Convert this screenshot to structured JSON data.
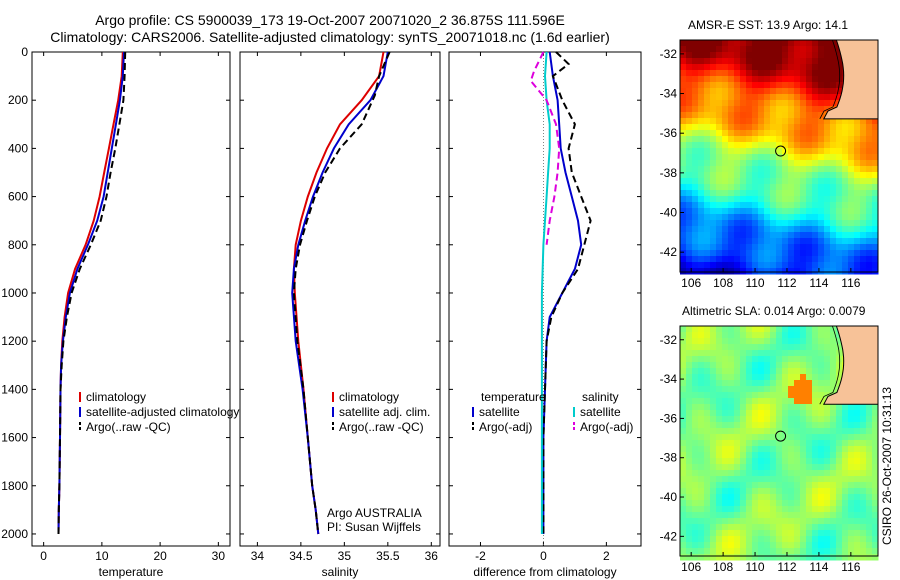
{
  "header": {
    "line1": "Argo profile: CS 5900039_173 19-Oct-2007 20071020_2 36.875S 111.596E",
    "line2": "Climatology: CARS2006. Satellite-adjusted climatology: synTS_20071018.nc (1.6d earlier)"
  },
  "side_stamp": "CSIRO 26-Oct-2007 10:31:13",
  "colors": {
    "climatology": "#dd0000",
    "satellite": "#0000cc",
    "argo": "#000000",
    "salinity_sat": "#00cccc",
    "salinity_argo": "#dd00dd"
  },
  "chart_data": [
    {
      "type": "line",
      "xlabel": "temperature",
      "ylim": [
        2050,
        0
      ],
      "xlim": [
        -2,
        32
      ],
      "xticks": [
        0,
        10,
        20,
        30
      ],
      "yticks": [
        0,
        200,
        400,
        600,
        800,
        1000,
        1200,
        1400,
        1600,
        1800,
        2000
      ],
      "legend": {
        "position": "bottom-right",
        "entries": [
          "climatology",
          "satellite-adjusted climatology",
          "Argo(..raw -QC)"
        ]
      },
      "series": [
        {
          "name": "climatology",
          "style": "solid",
          "color": "#dd0000",
          "x": [
            13.6,
            13.4,
            12.8,
            12.0,
            11.2,
            10.4,
            9.6,
            8.6,
            7.2,
            5.4,
            4.2,
            3.6,
            3.2,
            3.0,
            2.9,
            2.8,
            2.7,
            2.6,
            2.55
          ],
          "y": [
            0,
            100,
            200,
            300,
            400,
            500,
            600,
            700,
            800,
            900,
            1000,
            1100,
            1200,
            1300,
            1400,
            1600,
            1800,
            1900,
            2000
          ]
        },
        {
          "name": "satellite-adjusted climatology",
          "style": "solid",
          "color": "#0000cc",
          "x": [
            13.8,
            13.6,
            13.1,
            12.4,
            11.7,
            11.0,
            10.3,
            9.2,
            7.6,
            5.8,
            4.5,
            3.8,
            3.3,
            3.0,
            2.9,
            2.8,
            2.7,
            2.6,
            2.55
          ],
          "y": [
            0,
            100,
            200,
            300,
            400,
            500,
            600,
            700,
            800,
            900,
            1000,
            1100,
            1200,
            1300,
            1400,
            1600,
            1800,
            1900,
            2000
          ]
        },
        {
          "name": "Argo(..raw -QC)",
          "style": "dashed",
          "color": "#000000",
          "x": [
            14.0,
            13.9,
            13.7,
            13.0,
            12.3,
            11.5,
            10.8,
            9.8,
            8.1,
            6.2,
            4.8,
            4.0,
            3.4,
            3.1,
            2.9,
            2.8,
            2.7,
            2.6,
            2.55
          ],
          "y": [
            0,
            100,
            200,
            300,
            400,
            500,
            600,
            700,
            800,
            900,
            1000,
            1100,
            1200,
            1300,
            1400,
            1600,
            1800,
            1900,
            2000
          ]
        }
      ]
    },
    {
      "type": "line",
      "xlabel": "salinity",
      "ylim": [
        2050,
        0
      ],
      "xlim": [
        33.8,
        36.1
      ],
      "xticks": [
        34,
        34.5,
        35,
        35.5,
        36
      ],
      "legend": {
        "position": "bottom-right",
        "entries": [
          "climatology",
          "satellite adj. clim.",
          "Argo(..raw -QC)"
        ]
      },
      "annotation": [
        "Argo AUSTRALIA",
        "PI: Susan Wijffels"
      ],
      "series": [
        {
          "name": "climatology",
          "style": "solid",
          "color": "#dd0000",
          "x": [
            35.45,
            35.4,
            35.2,
            34.95,
            34.8,
            34.68,
            34.58,
            34.5,
            34.44,
            34.42,
            34.43,
            34.47,
            34.53,
            34.58,
            34.63,
            34.67,
            34.7
          ],
          "y": [
            0,
            100,
            200,
            300,
            400,
            500,
            600,
            700,
            800,
            900,
            1000,
            1200,
            1400,
            1600,
            1800,
            1900,
            2000
          ]
        },
        {
          "name": "satellite adj. clim.",
          "style": "solid",
          "color": "#0000cc",
          "x": [
            35.5,
            35.45,
            35.3,
            35.05,
            34.88,
            34.75,
            34.64,
            34.55,
            34.47,
            34.42,
            34.4,
            34.44,
            34.52,
            34.58,
            34.63,
            34.67,
            34.7
          ],
          "y": [
            0,
            100,
            200,
            300,
            400,
            500,
            600,
            700,
            800,
            900,
            1000,
            1200,
            1400,
            1600,
            1800,
            1900,
            2000
          ]
        },
        {
          "name": "Argo(..raw -QC)",
          "style": "dashed",
          "color": "#000000",
          "x": [
            35.52,
            35.4,
            35.35,
            35.2,
            34.95,
            34.78,
            34.66,
            34.57,
            34.49,
            34.44,
            34.42,
            34.46,
            34.53,
            34.58,
            34.63,
            34.67,
            34.7
          ],
          "y": [
            0,
            100,
            180,
            300,
            400,
            500,
            600,
            700,
            800,
            900,
            1000,
            1200,
            1400,
            1600,
            1800,
            1900,
            2000
          ]
        }
      ]
    },
    {
      "type": "line",
      "xlabel": "difference from climatology",
      "ylim": [
        2050,
        0
      ],
      "xlim": [
        -3,
        3.1
      ],
      "xticks": [
        -2,
        0,
        2
      ],
      "legend": {
        "position": "bottom-right",
        "columns": [
          {
            "title": "temperature",
            "entries": [
              "satellite",
              "Argo(-adj)"
            ]
          },
          {
            "title": "salinity",
            "entries": [
              "satellite",
              "Argo(-adj)"
            ]
          }
        ]
      },
      "series": [
        {
          "name": "temperature satellite",
          "style": "solid",
          "color": "#0000cc",
          "x": [
            0.2,
            0.25,
            0.3,
            0.45,
            0.5,
            0.55,
            0.7,
            0.9,
            1.1,
            1.2,
            1.0,
            0.6,
            0.2,
            0.1,
            0.05,
            0.0,
            0.0,
            0.0
          ],
          "y": [
            0,
            50,
            100,
            200,
            300,
            400,
            500,
            600,
            700,
            800,
            900,
            1000,
            1100,
            1200,
            1400,
            1600,
            1800,
            2000
          ]
        },
        {
          "name": "temperature Argo(-adj)",
          "style": "dashed",
          "color": "#000000",
          "x": [
            0.4,
            0.8,
            0.3,
            0.6,
            1.0,
            0.8,
            0.9,
            1.2,
            1.5,
            1.3,
            1.1,
            0.6,
            0.25,
            0.1,
            0.05,
            0.0,
            0.0,
            0.0
          ],
          "y": [
            0,
            50,
            100,
            200,
            300,
            400,
            500,
            600,
            700,
            800,
            900,
            1000,
            1100,
            1200,
            1400,
            1600,
            1800,
            2000
          ]
        },
        {
          "name": "salinity satellite",
          "style": "solid",
          "color": "#00cccc",
          "x": [
            0.1,
            0.05,
            0.1,
            0.2,
            0.2,
            0.15,
            0.1,
            0.05,
            0.0,
            -0.05,
            -0.05,
            -0.05,
            -0.05,
            -0.05,
            -0.05
          ],
          "y": [
            0,
            100,
            200,
            300,
            400,
            500,
            600,
            700,
            800,
            1000,
            1200,
            1400,
            1600,
            1800,
            2000
          ]
        },
        {
          "name": "salinity Argo(-adj)",
          "style": "dashed",
          "color": "#dd00dd",
          "x": [
            0.0,
            -0.3,
            -0.4,
            0.1,
            0.4,
            0.5,
            0.45,
            0.35,
            0.2,
            0.1
          ],
          "y": [
            0,
            80,
            120,
            200,
            300,
            400,
            500,
            600,
            700,
            800
          ]
        }
      ]
    }
  ],
  "maps": [
    {
      "title": "AMSR-E SST: 13.9 Argo: 14.1",
      "lon_ticks": [
        106,
        108,
        110,
        112,
        114,
        116
      ],
      "lat_ticks": [
        -32,
        -34,
        -36,
        -38,
        -40,
        -42
      ],
      "lon_range": [
        105.3,
        117.7
      ],
      "lat_range": [
        -43.0,
        -31.3
      ],
      "marker": {
        "lon": 111.6,
        "lat": -36.9
      }
    },
    {
      "title": "Altimetric SLA: 0.014 Argo: 0.0079",
      "lon_ticks": [
        106,
        108,
        110,
        112,
        114,
        116
      ],
      "lat_ticks": [
        -32,
        -34,
        -36,
        -38,
        -40,
        -42
      ],
      "lon_range": [
        105.3,
        117.7
      ],
      "lat_range": [
        -43.0,
        -31.3
      ],
      "marker": {
        "lon": 111.6,
        "lat": -36.9
      }
    }
  ]
}
